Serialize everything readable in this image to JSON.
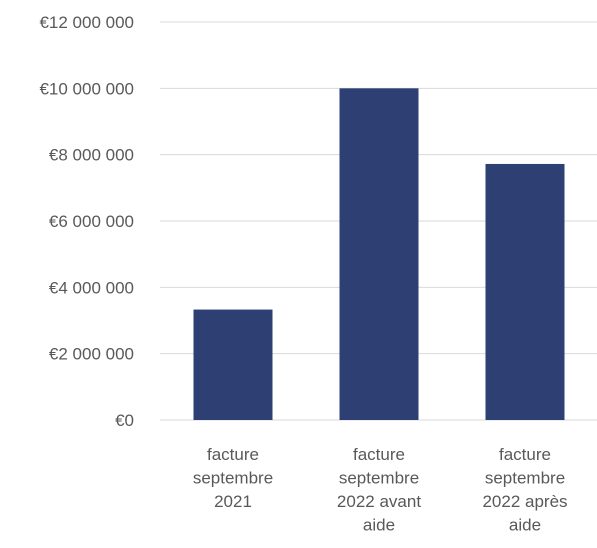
{
  "chart_data": {
    "type": "bar",
    "categories": [
      [
        "facture",
        "septembre",
        "2021"
      ],
      [
        "facture",
        "septembre",
        "2022 avant",
        "aide"
      ],
      [
        "facture",
        "septembre",
        "2022 après",
        "aide"
      ]
    ],
    "values": [
      3330000,
      10000000,
      7720000
    ],
    "ylim": [
      0,
      12000000
    ],
    "yticks": [
      0,
      2000000,
      4000000,
      6000000,
      8000000,
      10000000,
      12000000
    ],
    "ytick_labels": [
      "€0",
      "€2 000 000",
      "€4 000 000",
      "€6 000 000",
      "€8 000 000",
      "€10 000 000",
      "€12 000 000"
    ],
    "grid": "horizontal",
    "legend": "none",
    "bar_color": "#2e3f73",
    "grid_color": "#d9d9d9",
    "text_color": "#595959"
  }
}
